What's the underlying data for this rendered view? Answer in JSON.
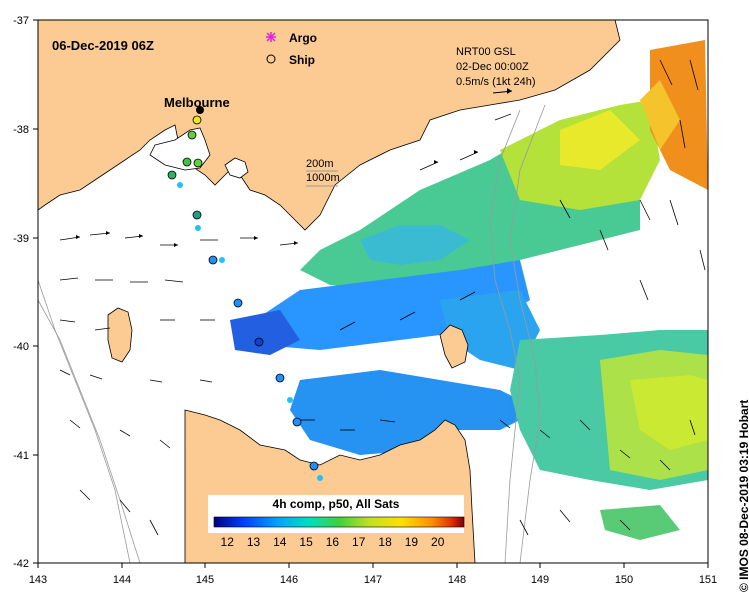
{
  "map": {
    "date_label": "06-Dec-2019 06Z",
    "place_labels": {
      "city": "Melbourne"
    },
    "legend": [
      {
        "label": "Argo",
        "symbol": "magenta-star"
      },
      {
        "label": "Ship",
        "symbol": "open-circle"
      }
    ],
    "current_vectors": {
      "product": "NRT00 GSL",
      "date": "02-Dec 00:00Z",
      "scale": "0.5m/s (1kt 24h)"
    },
    "isobaths": [
      "200m",
      "1000m"
    ],
    "colorbar": {
      "title": "4h comp, p50, All Sats",
      "ticks": [
        "12",
        "13",
        "14",
        "15",
        "16",
        "17",
        "18",
        "19",
        "20"
      ],
      "range": [
        11.5,
        21.0
      ],
      "colors": [
        "#000080",
        "#0040ff",
        "#00a0ff",
        "#00e0c0",
        "#40d040",
        "#c0e020",
        "#ffe000",
        "#ff9000",
        "#e03000",
        "#800000"
      ]
    },
    "x_axis": {
      "ticks": [
        "143",
        "144",
        "145",
        "146",
        "147",
        "148",
        "149",
        "150",
        "151"
      ],
      "range": [
        143,
        151
      ]
    },
    "y_axis": {
      "ticks": [
        "-37",
        "-38",
        "-39",
        "-40",
        "-41",
        "-42"
      ],
      "range": [
        -42,
        -37
      ]
    },
    "credit": "© IMOS 08-Dec-2019 03:19 Hobart",
    "colors": {
      "land": "#fccb94",
      "frame": "#000000",
      "ocean": "#ffffff"
    }
  }
}
